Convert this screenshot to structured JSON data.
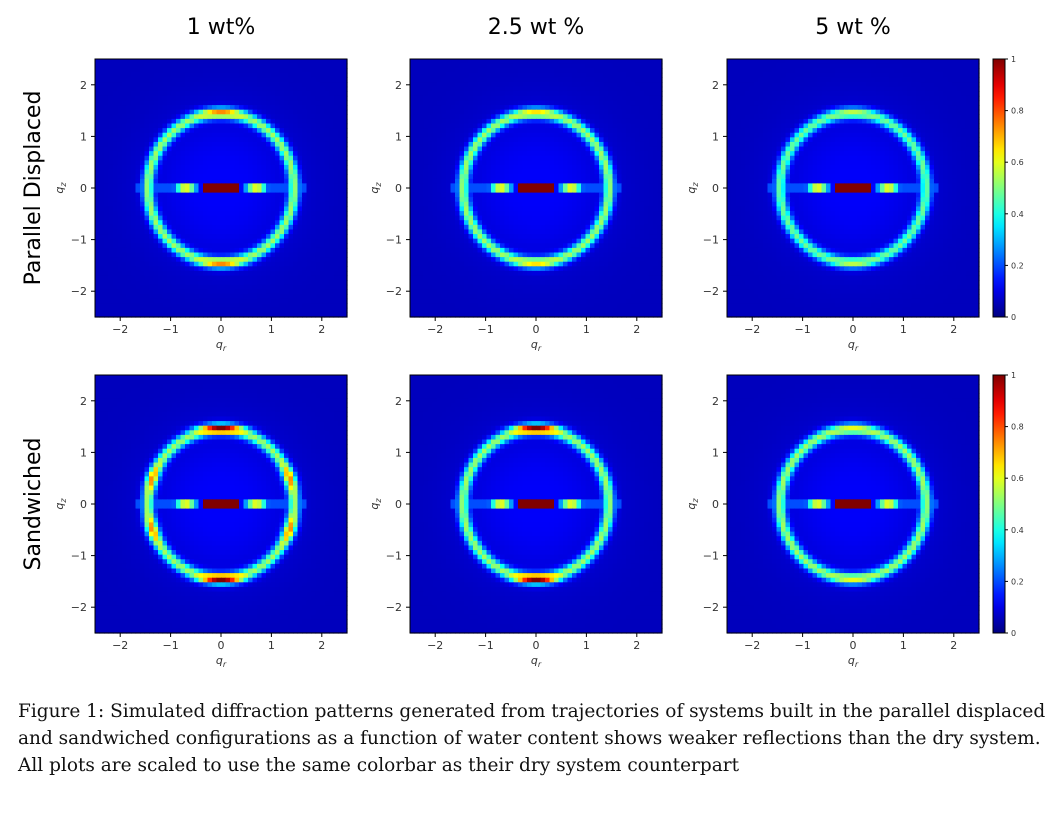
{
  "chart_data": {
    "type": "heatmap",
    "description_type": "simulated diffraction pattern grid",
    "column_titles": [
      "1 wt%",
      "2.5 wt %",
      "5 wt %"
    ],
    "row_titles": [
      "Parallel Displaced",
      "Sandwiched"
    ],
    "xlabel": "q_r",
    "ylabel": "q_z",
    "xlim": [
      -2.5,
      2.5
    ],
    "ylim": [
      -2.5,
      2.5
    ],
    "xticks": [
      "−2",
      "−1",
      "0",
      "1",
      "2"
    ],
    "yticks": [
      "2",
      "1",
      "0",
      "−1",
      "−2"
    ],
    "colormap": "jet",
    "colorbar": {
      "range": [
        0,
        1
      ],
      "ticks": [
        "1",
        "0.8",
        "0.6",
        "0.4",
        "0.2",
        "0"
      ]
    },
    "panels": [
      {
        "row": "Parallel Displaced",
        "column": "1 wt%",
        "ring_radius": 1.45,
        "ring_intensity": 0.45,
        "cap_intensity": 0.7,
        "equator_peak": 1.0,
        "lobes": false
      },
      {
        "row": "Parallel Displaced",
        "column": "2.5 wt %",
        "ring_radius": 1.45,
        "ring_intensity": 0.45,
        "cap_intensity": 0.6,
        "equator_peak": 1.0,
        "lobes": false
      },
      {
        "row": "Parallel Displaced",
        "column": "5 wt %",
        "ring_radius": 1.45,
        "ring_intensity": 0.4,
        "cap_intensity": 0.5,
        "equator_peak": 1.0,
        "lobes": false
      },
      {
        "row": "Sandwiched",
        "column": "1 wt%",
        "ring_radius": 1.45,
        "ring_intensity": 0.45,
        "cap_intensity": 1.0,
        "equator_peak": 1.0,
        "lobes": true
      },
      {
        "row": "Sandwiched",
        "column": "2.5 wt %",
        "ring_radius": 1.45,
        "ring_intensity": 0.45,
        "cap_intensity": 1.0,
        "equator_peak": 1.0,
        "lobes": false
      },
      {
        "row": "Sandwiched",
        "column": "5 wt %",
        "ring_radius": 1.45,
        "ring_intensity": 0.45,
        "cap_intensity": 0.55,
        "equator_peak": 1.0,
        "lobes": false
      }
    ]
  },
  "caption": {
    "lines": [
      "Figure 1: Simulated diffraction patterns generated from trajectories of systems built in the parallel displaced",
      "and sandwiched configurations as a function of water content shows weaker reflections than the dry system.",
      "All plots are scaled to use the same colorbar as their dry system counterpart"
    ]
  }
}
